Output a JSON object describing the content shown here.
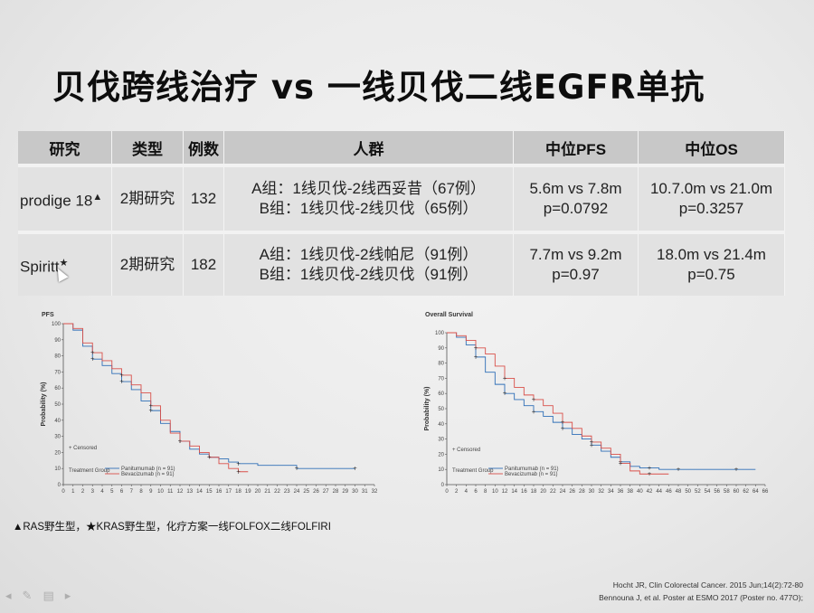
{
  "title": "贝伐跨线治疗 vs 一线贝伐二线EGFR单抗",
  "table": {
    "headers": [
      "研究",
      "类型",
      "例数",
      "人群",
      "中位PFS",
      "中位OS"
    ],
    "rows": [
      {
        "study": "prodige 18",
        "study_mark": "▲",
        "type": "2期研究",
        "n": "132",
        "population": [
          "A组：1线贝伐-2线西妥昔（67例）",
          "B组：1线贝伐-2线贝伐（65例）"
        ],
        "pfs": [
          "5.6m vs 7.8m",
          "p=0.0792"
        ],
        "os": [
          "10.7.0m vs 21.0m",
          "p=0.3257"
        ]
      },
      {
        "study": "Spiritt",
        "study_mark": "★",
        "type": "2期研究",
        "n": "182",
        "population": [
          "A组：1线贝伐-2线帕尼（91例）",
          "B组：1线贝伐-2线贝伐（91例）"
        ],
        "pfs": [
          "7.7m vs 9.2m",
          "p=0.97"
        ],
        "os": [
          "18.0m vs 21.4m",
          "p=0.75"
        ]
      }
    ]
  },
  "chart_data": [
    {
      "type": "line",
      "title": "PFS",
      "xlabel": "",
      "ylabel": "Probability (%)",
      "xlim": [
        0,
        32
      ],
      "ylim": [
        0,
        100
      ],
      "x_ticks": [
        "0",
        "1",
        "2",
        "3",
        "4",
        "5",
        "6",
        "7",
        "8",
        "9",
        "10",
        "11",
        "12",
        "13",
        "14",
        "15",
        "16",
        "17",
        "18",
        "19",
        "20",
        "21",
        "22",
        "23",
        "24",
        "25",
        "26",
        "27",
        "28",
        "29",
        "30",
        "31",
        "32"
      ],
      "y_ticks": [
        "0",
        "10",
        "20",
        "30",
        "40",
        "50",
        "60",
        "70",
        "80",
        "90",
        "100"
      ],
      "annotations": [
        "+ Censored"
      ],
      "legend_title": "Treatment Group",
      "series": [
        {
          "name": "Panitumumab (n = 91)",
          "color": "#2f6fb7",
          "x": [
            0,
            1,
            2,
            3,
            4,
            5,
            6,
            7,
            8,
            9,
            10,
            11,
            12,
            13,
            14,
            15,
            16,
            17,
            18,
            20,
            22,
            24,
            26,
            28,
            30
          ],
          "y": [
            100,
            96,
            86,
            78,
            74,
            69,
            64,
            59,
            52,
            46,
            38,
            33,
            27,
            22,
            19,
            17,
            16,
            14,
            13,
            12,
            12,
            10,
            10,
            10,
            10
          ]
        },
        {
          "name": "Bevacizumab (n = 91)",
          "color": "#d9504a",
          "x": [
            0,
            1,
            2,
            3,
            4,
            5,
            6,
            7,
            8,
            9,
            10,
            11,
            12,
            13,
            14,
            15,
            16,
            17,
            18,
            19
          ],
          "y": [
            100,
            97,
            88,
            82,
            77,
            72,
            68,
            62,
            57,
            49,
            40,
            32,
            27,
            24,
            20,
            17,
            13,
            10,
            8,
            8
          ]
        }
      ]
    },
    {
      "type": "line",
      "title": "Overall Survival",
      "xlabel": "",
      "ylabel": "Probability (%)",
      "xlim": [
        0,
        66
      ],
      "ylim": [
        0,
        100
      ],
      "x_ticks": [
        "0",
        "2",
        "4",
        "6",
        "8",
        "10",
        "12",
        "14",
        "16",
        "18",
        "20",
        "22",
        "24",
        "26",
        "28",
        "30",
        "32",
        "34",
        "36",
        "38",
        "40",
        "42",
        "44",
        "46",
        "48",
        "50",
        "52",
        "54",
        "56",
        "58",
        "60",
        "62",
        "64",
        "66"
      ],
      "y_ticks": [
        "0",
        "10",
        "20",
        "30",
        "40",
        "50",
        "60",
        "70",
        "80",
        "90",
        "100"
      ],
      "annotations": [
        "+ Censored"
      ],
      "legend_title": "Treatment Group",
      "series": [
        {
          "name": "Panitumumab (n = 91)",
          "color": "#2f6fb7",
          "x": [
            0,
            2,
            4,
            6,
            8,
            10,
            12,
            14,
            16,
            18,
            20,
            22,
            24,
            26,
            28,
            30,
            32,
            34,
            36,
            38,
            40,
            42,
            44,
            46,
            48,
            52,
            56,
            60,
            64
          ],
          "y": [
            100,
            97,
            92,
            84,
            74,
            66,
            60,
            56,
            52,
            48,
            45,
            41,
            37,
            33,
            30,
            26,
            22,
            18,
            15,
            12,
            11,
            11,
            10,
            10,
            10,
            10,
            10,
            10,
            10
          ]
        },
        {
          "name": "Bevacizumab (n = 91)",
          "color": "#d9504a",
          "x": [
            0,
            2,
            4,
            6,
            8,
            10,
            12,
            14,
            16,
            18,
            20,
            22,
            24,
            26,
            28,
            30,
            32,
            34,
            36,
            38,
            40,
            42,
            44,
            46
          ],
          "y": [
            100,
            98,
            95,
            90,
            86,
            78,
            70,
            64,
            59,
            56,
            52,
            47,
            41,
            37,
            32,
            28,
            24,
            20,
            14,
            9,
            7,
            7,
            7,
            7
          ]
        }
      ]
    }
  ],
  "footnote": "▲RAS野生型，★KRAS野生型，化疗方案一线FOLFOX二线FOLFIRI",
  "references": [
    "Hocht JR, Clin Colorectal Cancer. 2015 Jun;14(2):72-80",
    "Bennouna J, et al. Poster at ESMO 2017 (Poster no. 477O);"
  ]
}
